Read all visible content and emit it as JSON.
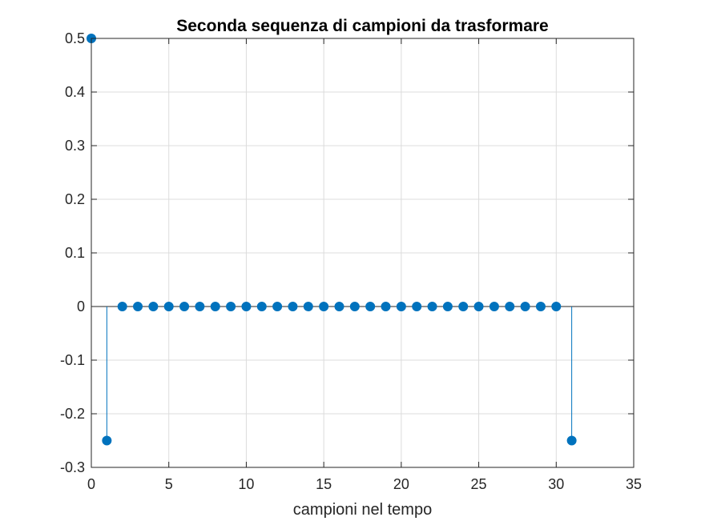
{
  "chart_data": {
    "type": "stem",
    "title": "Seconda sequenza di campioni da trasformare",
    "xlabel": "campioni nel tempo",
    "ylabel": "",
    "xlim": [
      0,
      35
    ],
    "ylim": [
      -0.3,
      0.5
    ],
    "xticks": [
      0,
      5,
      10,
      15,
      20,
      25,
      30,
      35
    ],
    "yticks": [
      -0.3,
      -0.2,
      -0.1,
      0,
      0.1,
      0.2,
      0.3,
      0.4,
      0.5
    ],
    "grid": true,
    "baseline": 0,
    "color": "#0072BD",
    "x": [
      0,
      1,
      2,
      3,
      4,
      5,
      6,
      7,
      8,
      9,
      10,
      11,
      12,
      13,
      14,
      15,
      16,
      17,
      18,
      19,
      20,
      21,
      22,
      23,
      24,
      25,
      26,
      27,
      28,
      29,
      30,
      31
    ],
    "y": [
      0.5,
      -0.25,
      0,
      0,
      0,
      0,
      0,
      0,
      0,
      0,
      0,
      0,
      0,
      0,
      0,
      0,
      0,
      0,
      0,
      0,
      0,
      0,
      0,
      0,
      0,
      0,
      0,
      0,
      0,
      0,
      0,
      -0.25
    ]
  }
}
